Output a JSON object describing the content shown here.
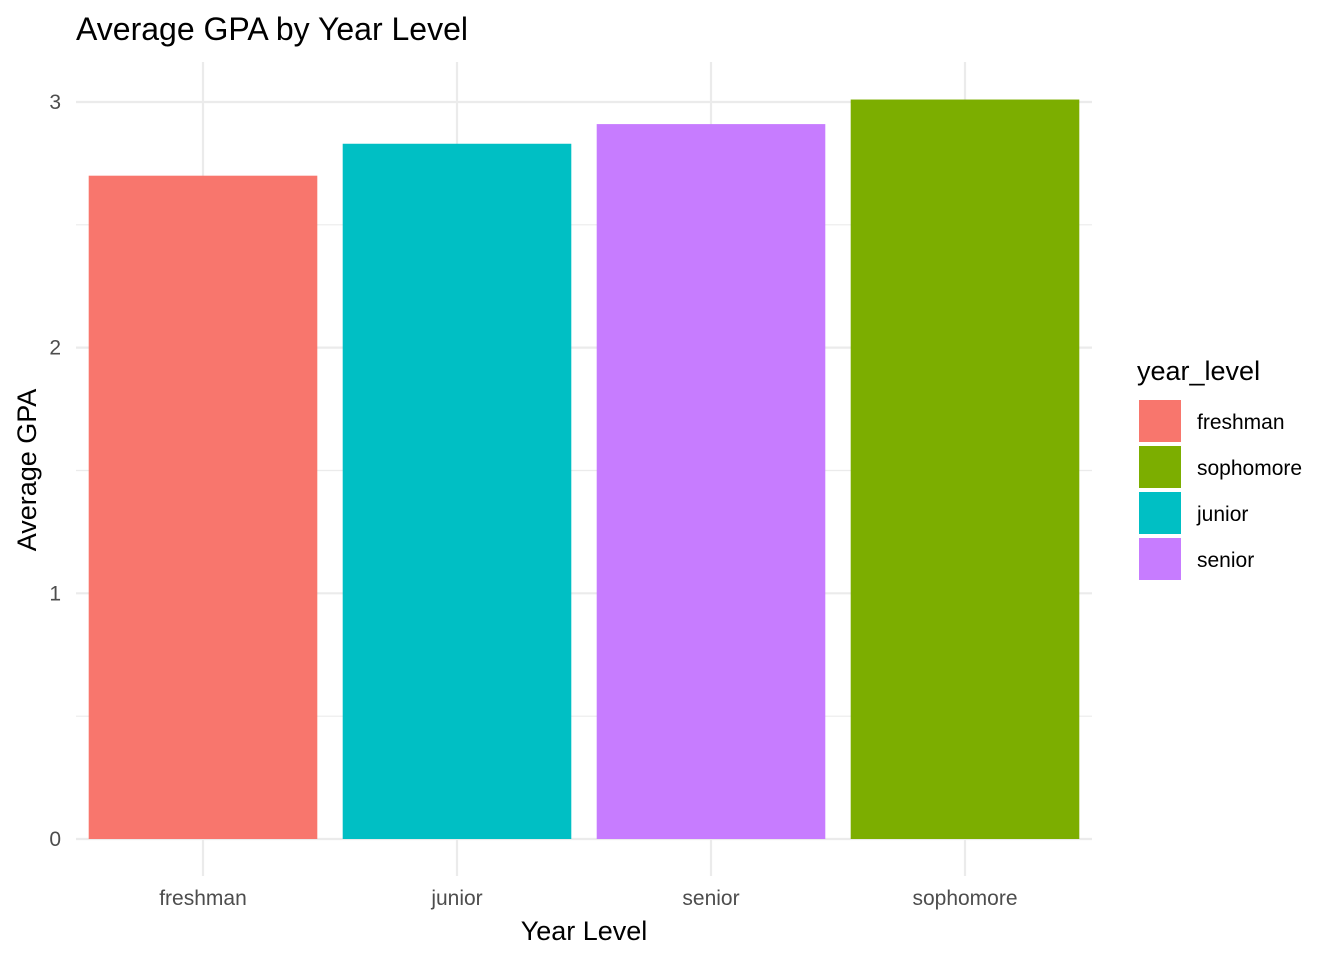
{
  "chart_data": {
    "type": "bar",
    "title": "Average GPA by Year Level",
    "xlabel": "Year Level",
    "ylabel": "Average GPA",
    "categories": [
      "freshman",
      "junior",
      "senior",
      "sophomore"
    ],
    "values": [
      2.7,
      2.83,
      2.91,
      3.01
    ],
    "bar_colors": [
      "#F8766D",
      "#00BFC4",
      "#C77CFF",
      "#7CAE00"
    ],
    "ylim": [
      0,
      3.15
    ],
    "y_ticks": [
      0,
      1,
      2,
      3
    ],
    "grid": true,
    "legend": {
      "title": "year_level",
      "placement": "right",
      "entries": [
        {
          "label": "freshman",
          "color": "#F8766D"
        },
        {
          "label": "sophomore",
          "color": "#7CAE00"
        },
        {
          "label": "junior",
          "color": "#00BFC4"
        },
        {
          "label": "senior",
          "color": "#C77CFF"
        }
      ]
    }
  }
}
